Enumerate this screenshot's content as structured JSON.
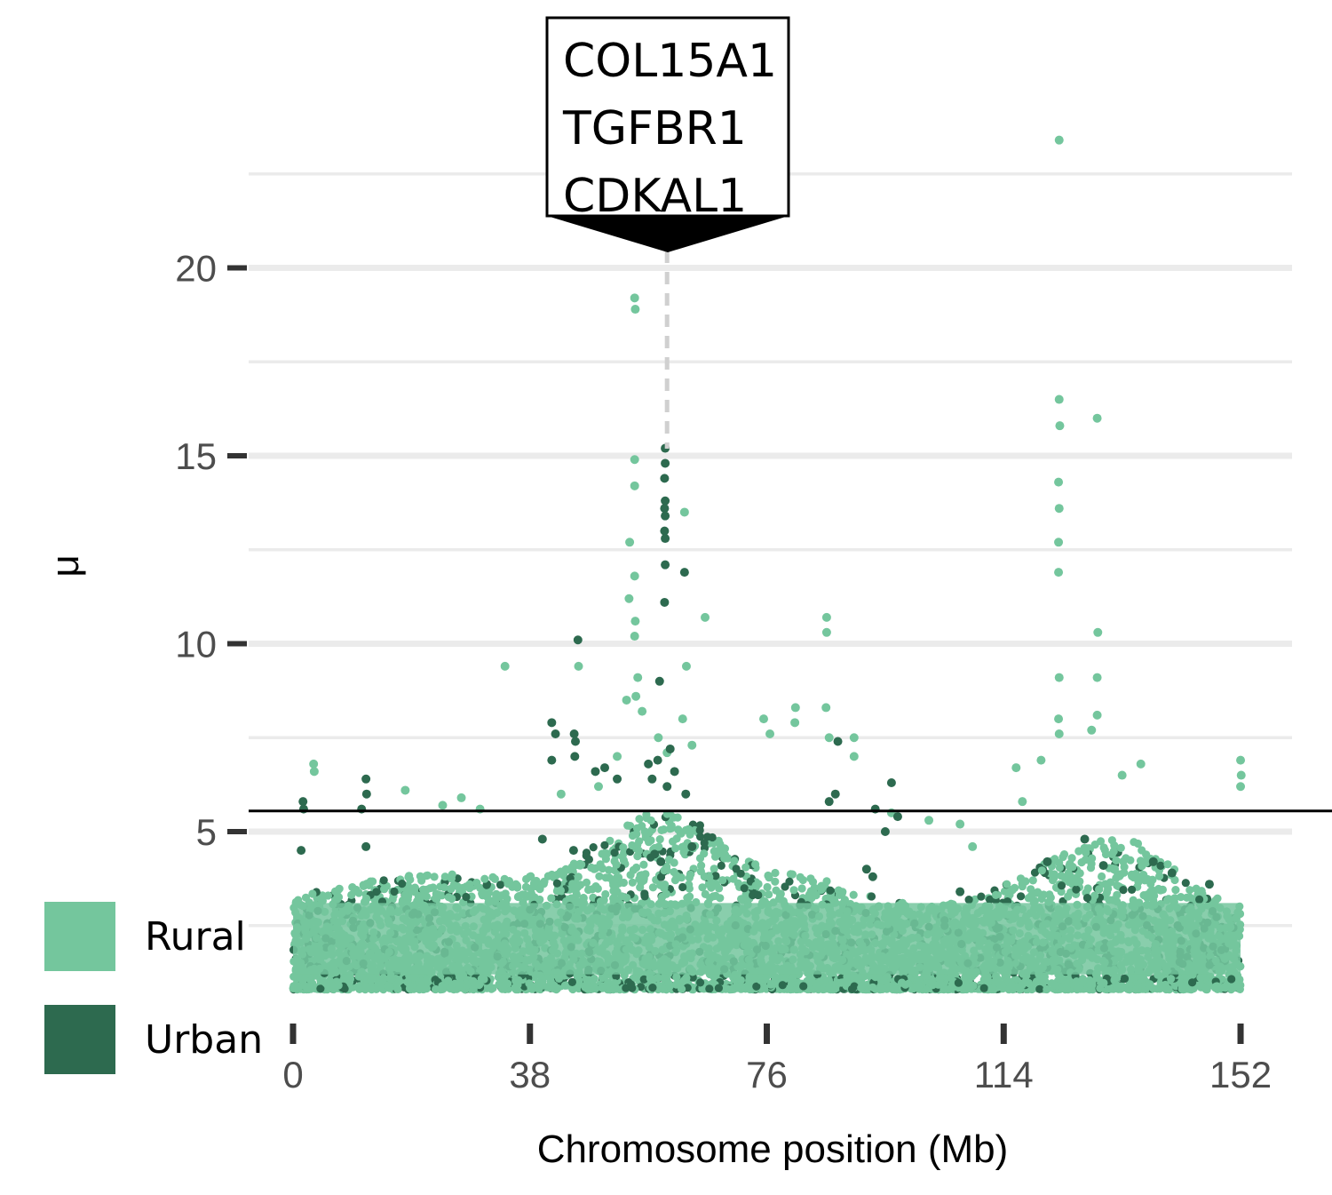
{
  "chart_data": {
    "type": "scatter",
    "xlabel": "Chromosome position (Mb)",
    "ylabel": "μ",
    "xlim": [
      -1,
      160
    ],
    "ylim": [
      0.6,
      23.5
    ],
    "x_ticks": [
      0,
      38,
      76,
      114,
      152
    ],
    "y_ticks": [
      5,
      10,
      15,
      20
    ],
    "grid": "horizontal",
    "threshold_y": 5.55,
    "annotation": {
      "x": 60,
      "genes": [
        "COL15A1",
        "TGFBR1",
        "CDKAL1"
      ]
    },
    "legend_position": "left",
    "colors": {
      "Rural": "#74c69d",
      "Urban": "#2d6a4f"
    },
    "series": [
      {
        "name": "Rural",
        "color": "#74c69d",
        "points": [
          [
            54.8,
            19.2
          ],
          [
            54.9,
            18.9
          ],
          [
            54.8,
            14.9
          ],
          [
            54.8,
            14.2
          ],
          [
            54.0,
            12.7
          ],
          [
            54.8,
            11.8
          ],
          [
            53.9,
            11.2
          ],
          [
            54.9,
            10.6
          ],
          [
            54.8,
            10.2
          ],
          [
            55.3,
            9.1
          ],
          [
            62.8,
            13.5
          ],
          [
            66.1,
            10.7
          ],
          [
            63.1,
            9.4
          ],
          [
            34.0,
            9.4
          ],
          [
            45.8,
            9.4
          ],
          [
            85.6,
            10.7
          ],
          [
            85.6,
            10.3
          ],
          [
            85.5,
            8.3
          ],
          [
            80.6,
            8.3
          ],
          [
            80.5,
            7.9
          ],
          [
            75.5,
            8.0
          ],
          [
            76.5,
            7.6
          ],
          [
            86.0,
            7.5
          ],
          [
            90.0,
            7.5
          ],
          [
            90.0,
            7.0
          ],
          [
            122.9,
            23.4
          ],
          [
            122.9,
            16.5
          ],
          [
            123.0,
            15.8
          ],
          [
            122.8,
            14.3
          ],
          [
            122.9,
            13.6
          ],
          [
            122.8,
            12.7
          ],
          [
            122.8,
            11.9
          ],
          [
            122.9,
            9.1
          ],
          [
            122.8,
            8.0
          ],
          [
            122.9,
            7.6
          ],
          [
            129.0,
            16.0
          ],
          [
            129.1,
            10.3
          ],
          [
            129.0,
            9.1
          ],
          [
            129.0,
            8.1
          ],
          [
            128.1,
            7.7
          ],
          [
            53.5,
            8.5
          ],
          [
            55.0,
            8.6
          ],
          [
            56.0,
            8.2
          ],
          [
            62.5,
            8.0
          ],
          [
            64.0,
            7.3
          ],
          [
            60.0,
            7.1
          ],
          [
            58.6,
            7.5
          ],
          [
            49.0,
            6.2
          ],
          [
            52.0,
            7.0
          ],
          [
            3.3,
            6.8
          ],
          [
            3.4,
            6.6
          ],
          [
            152.0,
            6.9
          ],
          [
            152.1,
            6.5
          ],
          [
            152.0,
            6.2
          ],
          [
            116.0,
            6.7
          ],
          [
            120.0,
            6.9
          ],
          [
            136.0,
            6.8
          ],
          [
            133.0,
            6.5
          ],
          [
            43.0,
            6.0
          ],
          [
            18.0,
            6.1
          ],
          [
            27.0,
            5.9
          ],
          [
            117.0,
            5.8
          ],
          [
            24.0,
            5.7
          ],
          [
            30.0,
            5.6
          ],
          [
            102.0,
            5.3
          ],
          [
            107.0,
            5.2
          ],
          [
            96.0,
            5.5
          ],
          [
            109.0,
            4.6
          ]
        ]
      },
      {
        "name": "Urban",
        "color": "#2d6a4f",
        "points": [
          [
            59.7,
            15.2
          ],
          [
            59.7,
            14.8
          ],
          [
            59.6,
            14.4
          ],
          [
            59.7,
            13.8
          ],
          [
            59.6,
            13.6
          ],
          [
            59.7,
            13.4
          ],
          [
            59.6,
            13.0
          ],
          [
            59.7,
            12.8
          ],
          [
            59.7,
            12.1
          ],
          [
            62.8,
            11.9
          ],
          [
            59.6,
            11.1
          ],
          [
            45.7,
            10.1
          ],
          [
            58.8,
            9.0
          ],
          [
            41.5,
            7.9
          ],
          [
            42.1,
            7.6
          ],
          [
            45.1,
            7.6
          ],
          [
            45.3,
            7.4
          ],
          [
            45.2,
            7.0
          ],
          [
            41.5,
            6.9
          ],
          [
            48.5,
            6.6
          ],
          [
            50.0,
            6.7
          ],
          [
            52.0,
            6.4
          ],
          [
            57.0,
            6.8
          ],
          [
            58.5,
            6.9
          ],
          [
            60.5,
            7.2
          ],
          [
            61.2,
            6.6
          ],
          [
            60.0,
            6.2
          ],
          [
            63.0,
            6.0
          ],
          [
            57.6,
            6.4
          ],
          [
            87.4,
            7.4
          ],
          [
            96.0,
            6.3
          ],
          [
            87.0,
            6.0
          ],
          [
            86.0,
            5.8
          ],
          [
            11.7,
            6.4
          ],
          [
            11.8,
            6.0
          ],
          [
            1.6,
            5.8
          ],
          [
            1.7,
            5.6
          ],
          [
            11.0,
            5.6
          ],
          [
            1.3,
            4.5
          ],
          [
            11.7,
            4.6
          ],
          [
            93.4,
            5.6
          ],
          [
            97.0,
            5.4
          ],
          [
            95.0,
            5.0
          ],
          [
            40.0,
            4.8
          ],
          [
            45.0,
            4.5
          ],
          [
            58.0,
            4.4
          ],
          [
            64.0,
            4.6
          ],
          [
            59.0,
            4.2
          ],
          [
            92.0,
            4.0
          ],
          [
            93.0,
            3.8
          ],
          [
            127.0,
            4.8
          ],
          [
            130.0,
            4.1
          ],
          [
            138.0,
            4.2
          ],
          [
            141.0,
            3.9
          ],
          [
            121.0,
            4.2
          ],
          [
            107.0,
            3.4
          ],
          [
            147.0,
            3.6
          ]
        ]
      }
    ]
  }
}
